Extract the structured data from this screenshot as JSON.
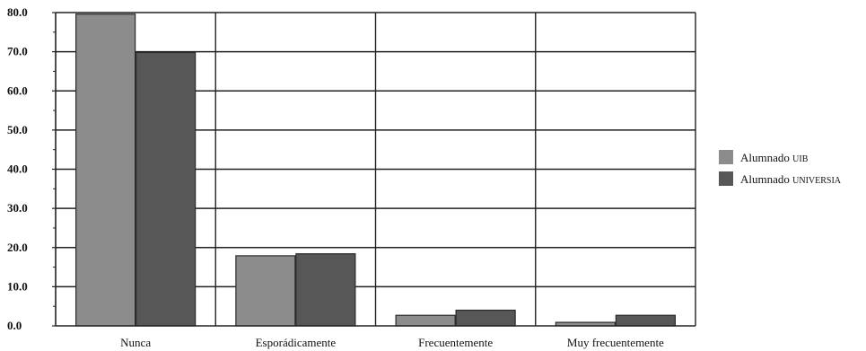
{
  "chart_data": {
    "type": "bar",
    "title": "",
    "xlabel": "",
    "ylabel": "",
    "ylim": [
      0,
      80
    ],
    "yticks": [
      "0.0",
      "10.0",
      "20.0",
      "30.0",
      "40.0",
      "50.0",
      "60.0",
      "70.0",
      "80.0"
    ],
    "categories": [
      "Nunca",
      "Esporádicamente",
      "Frecuentemente",
      "Muy frecuentemente"
    ],
    "series": [
      {
        "name": "Alumnado UIB",
        "name_main": "Alumnado",
        "name_sc": "UIB",
        "color": "#8c8c8c",
        "values": [
          79.6,
          17.9,
          2.7,
          0.9
        ]
      },
      {
        "name": "Alumnado UNIVERSIA",
        "name_main": "Alumnado",
        "name_sc": "UNIVERSIA",
        "color": "#575757",
        "values": [
          69.8,
          18.4,
          4.0,
          2.7
        ]
      }
    ],
    "grid": true,
    "legend": "right"
  }
}
